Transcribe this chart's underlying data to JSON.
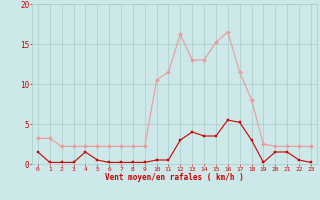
{
  "hours": [
    0,
    1,
    2,
    3,
    4,
    5,
    6,
    7,
    8,
    9,
    10,
    11,
    12,
    13,
    14,
    15,
    16,
    17,
    18,
    19,
    20,
    21,
    22,
    23
  ],
  "moyen": [
    1.5,
    0.2,
    0.2,
    0.2,
    1.5,
    0.5,
    0.2,
    0.2,
    0.2,
    0.2,
    0.5,
    0.5,
    3.0,
    4.0,
    3.5,
    3.5,
    5.5,
    5.2,
    3.0,
    0.2,
    1.5,
    1.5,
    0.5,
    0.2
  ],
  "rafales": [
    3.2,
    3.2,
    2.2,
    2.2,
    2.2,
    2.2,
    2.2,
    2.2,
    2.2,
    2.2,
    10.5,
    11.5,
    16.2,
    13.0,
    13.0,
    15.2,
    16.5,
    11.5,
    8.0,
    2.5,
    2.2,
    2.2,
    2.2,
    2.2
  ],
  "bg_color": "#cce8e8",
  "grid_color": "#aacccc",
  "line_moyen_color": "#cc0000",
  "line_rafales_color": "#ee9999",
  "xlabel": "Vent moyen/en rafales ( km/h )",
  "ylim": [
    0,
    20
  ],
  "yticks": [
    0,
    5,
    10,
    15,
    20
  ],
  "tick_color": "#cc0000",
  "label_color": "#cc0000"
}
